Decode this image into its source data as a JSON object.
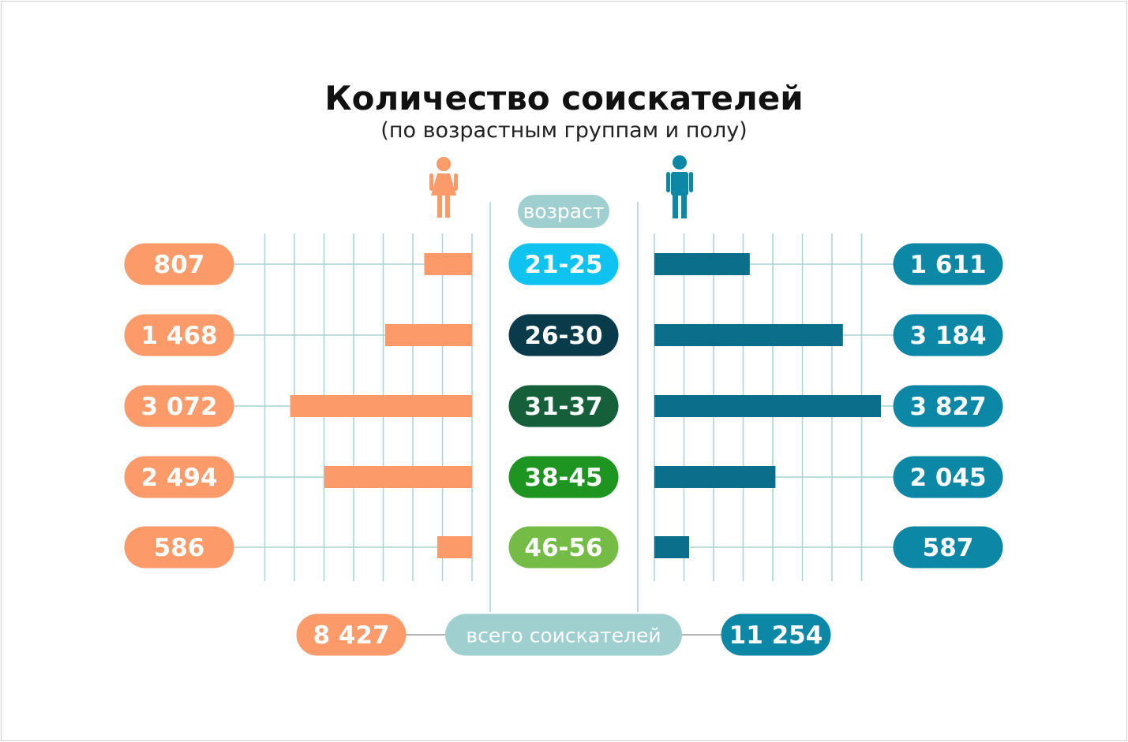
{
  "chart_data": {
    "type": "bar",
    "title": "Количество соискателей",
    "subtitle": "(по возрастным группам и полу)",
    "category_header": "возраст",
    "categories": [
      "21-25",
      "26-30",
      "31-37",
      "38-45",
      "46-56"
    ],
    "category_colors": [
      "#0fc3f0",
      "#0a3b4a",
      "#15603a",
      "#1e9421",
      "#74bc46"
    ],
    "series": [
      {
        "side": "left",
        "icon": "female-icon",
        "color": "#fc9a69",
        "values": [
          807,
          1468,
          3072,
          2494,
          586
        ],
        "labels": [
          "807",
          "1 468",
          "3 072",
          "2 494",
          "586"
        ]
      },
      {
        "side": "right",
        "icon": "male-icon",
        "color": "#0d87a6",
        "bar_color": "#0b6e8a",
        "values": [
          1611,
          3184,
          3827,
          2045,
          587
        ],
        "labels": [
          "1 611",
          "3 184",
          "3 827",
          "2 045",
          "587"
        ]
      }
    ],
    "totals": {
      "label": "всего соискателей",
      "left": "8 427",
      "right": "11 254"
    },
    "grid": true
  }
}
